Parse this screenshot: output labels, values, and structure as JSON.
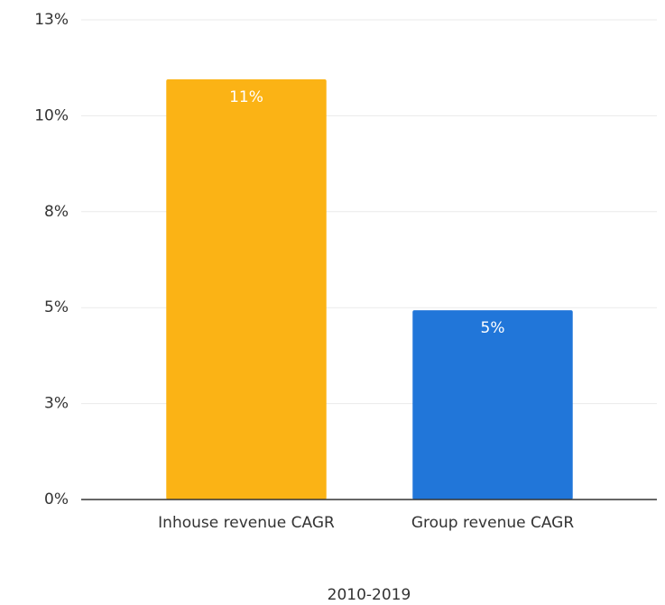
{
  "chart_data": {
    "type": "bar",
    "categories": [
      "Inhouse revenue CAGR",
      "Group revenue CAGR"
    ],
    "values": [
      10.95,
      4.93
    ],
    "value_labels": [
      "11%",
      "5%"
    ],
    "colors": [
      "#fbb315",
      "#2176d9"
    ],
    "x_label": "2010-2019",
    "ylim": [
      0,
      12.5
    ],
    "yticks": [
      {
        "value": 0,
        "label": "0%"
      },
      {
        "value": 2.5,
        "label": "3%"
      },
      {
        "value": 5,
        "label": "5%"
      },
      {
        "value": 7.5,
        "label": "8%"
      },
      {
        "value": 10,
        "label": "10%"
      },
      {
        "value": 12.5,
        "label": "13%"
      }
    ],
    "grid": true
  }
}
